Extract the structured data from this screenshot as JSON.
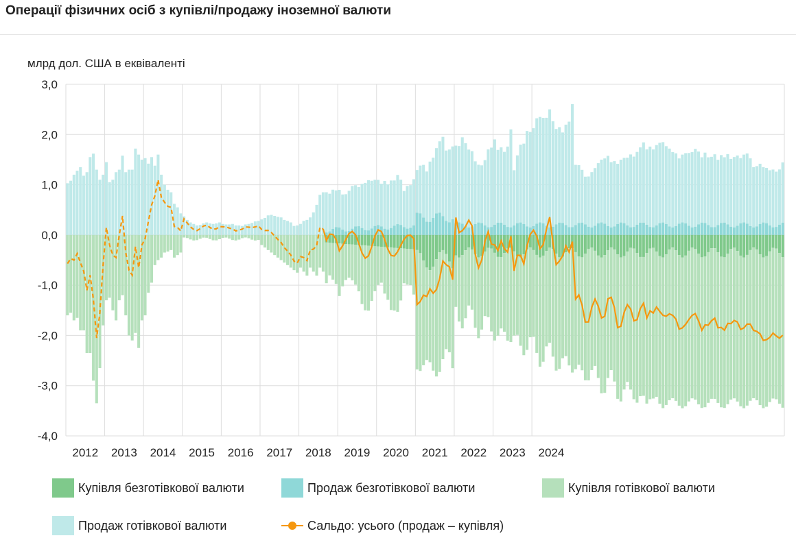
{
  "header": {
    "title": "Операції фізичних осіб з купівлі/продажу іноземної валюти"
  },
  "colors": {
    "buy_noncash": "#7fc98b",
    "sell_noncash": "#8fd8d8",
    "buy_cash": "#b5e0bb",
    "sell_cash": "#bfe9e9",
    "saldo": "#f5970f",
    "grid": "#dddddd"
  },
  "legend": [
    {
      "key": "buy_noncash",
      "label": "Купівля безготівкової валюти",
      "kind": "box"
    },
    {
      "key": "sell_noncash",
      "label": "Продаж безготівкової валюти",
      "kind": "box"
    },
    {
      "key": "buy_cash",
      "label": "Купівля готівкової валюти",
      "kind": "box"
    },
    {
      "key": "sell_cash",
      "label": "Продаж готівкової валюти",
      "kind": "box"
    },
    {
      "key": "saldo",
      "label": "Сальдо: усього (продаж – купівля)",
      "kind": "line"
    }
  ],
  "chart_data": {
    "type": "bar",
    "title": "Операції фізичних осіб з купівлі/продажу іноземної валюти",
    "ylabel": "млрд дол. США в еквіваленті",
    "ylim": [
      -4.0,
      3.0
    ],
    "yticks": [
      "3,0",
      "2,0",
      "1,0",
      "0,0",
      "-1,0",
      "-2,0",
      "-3,0",
      "-4,0"
    ],
    "grid": true,
    "legend_position": "bottom",
    "x_unit": "monthly observations, Jan 2012 – Sep 2024",
    "year_labels": [
      "2012",
      "2013",
      "2014",
      "2015",
      "2016",
      "2017",
      "2018",
      "2019",
      "2020",
      "2021",
      "2022",
      "2023",
      "2024"
    ],
    "noncash_start_month": "2018-09",
    "saldo_dashed_until": "2018-08",
    "series": [
      {
        "name": "Продаж готівкової валюти",
        "key": "sell_cash",
        "values": [
          1.03,
          1.08,
          1.2,
          1.28,
          1.35,
          1.18,
          1.25,
          1.55,
          1.62,
          1.3,
          1.1,
          1.2,
          1.45,
          1.05,
          1.1,
          1.25,
          1.3,
          1.58,
          1.25,
          1.3,
          1.3,
          1.72,
          1.6,
          1.5,
          1.53,
          1.42,
          1.55,
          1.38,
          1.6,
          1.2,
          1.0,
          0.9,
          0.85,
          0.62,
          0.55,
          0.43,
          0.37,
          0.3,
          0.25,
          0.22,
          0.19,
          0.2,
          0.23,
          0.25,
          0.23,
          0.22,
          0.23,
          0.25,
          0.22,
          0.21,
          0.21,
          0.22,
          0.19,
          0.19,
          0.18,
          0.21,
          0.22,
          0.24,
          0.27,
          0.28,
          0.31,
          0.34,
          0.39,
          0.4,
          0.38,
          0.36,
          0.35,
          0.3,
          0.28,
          0.25,
          0.18,
          0.19,
          0.22,
          0.28,
          0.3,
          0.35,
          0.45,
          0.6,
          0.8,
          0.85,
          0.8,
          0.75,
          0.78,
          0.73,
          0.75,
          0.7,
          0.74,
          0.8,
          0.85,
          0.82,
          0.78,
          0.88,
          0.94,
          1.0,
          0.95,
          0.92,
          0.9,
          0.85,
          0.95,
          0.9,
          0.95,
          0.9,
          0.98,
          0.9,
          0.72,
          0.85,
          0.85,
          0.92,
          0.85,
          0.95,
          1.05,
          1.0,
          1.2,
          1.2,
          1.3,
          1.42,
          1.58,
          1.4,
          1.45,
          1.45,
          1.55,
          1.52,
          1.72,
          1.65,
          1.55,
          1.5,
          1.25,
          1.15,
          1.15,
          1.3,
          1.55,
          1.58,
          1.7,
          1.45,
          1.5,
          1.45,
          1.6,
          1.95,
          1.1,
          1.35,
          1.55,
          1.6,
          1.9,
          1.9,
          1.95,
          2.1,
          2.1,
          2.1,
          2.15,
          2.35,
          2.1,
          1.9,
          1.9,
          1.8,
          2.0,
          2.1,
          2.45,
          1.2,
          1.15,
          1.05,
          0.95,
          1.0,
          1.1,
          1.15,
          1.2,
          1.25,
          1.3,
          1.4,
          1.3,
          1.3,
          1.2,
          1.25,
          1.3,
          1.35,
          1.45,
          1.4,
          1.45,
          1.5,
          1.6,
          1.5,
          1.6,
          1.55,
          1.6,
          1.6,
          1.6,
          1.55,
          1.55,
          1.5,
          1.45,
          1.3,
          1.35,
          1.4,
          1.45,
          1.5,
          1.55,
          1.45,
          1.3,
          1.4,
          1.35,
          1.4,
          1.45,
          1.3,
          1.35,
          1.3,
          1.4,
          1.35,
          1.4,
          1.4,
          1.3,
          1.35,
          1.4,
          1.35,
          1.2,
          1.2,
          1.2,
          1.1,
          1.1,
          1.1,
          1.15,
          1.1,
          1.1,
          1.2
        ],
        "note": ""
      },
      {
        "name": "Продаж безготівкової валюти",
        "key": "sell_noncash",
        "values": []
      },
      {
        "name": "Купівля готівкової валюти",
        "key": "buy_cash",
        "values": []
      },
      {
        "name": "Купівля безготівкової валюти",
        "key": "buy_noncash",
        "values": []
      },
      {
        "name": "Сальдо: усього (продаж – купівля)",
        "key": "saldo",
        "values": []
      }
    ]
  }
}
